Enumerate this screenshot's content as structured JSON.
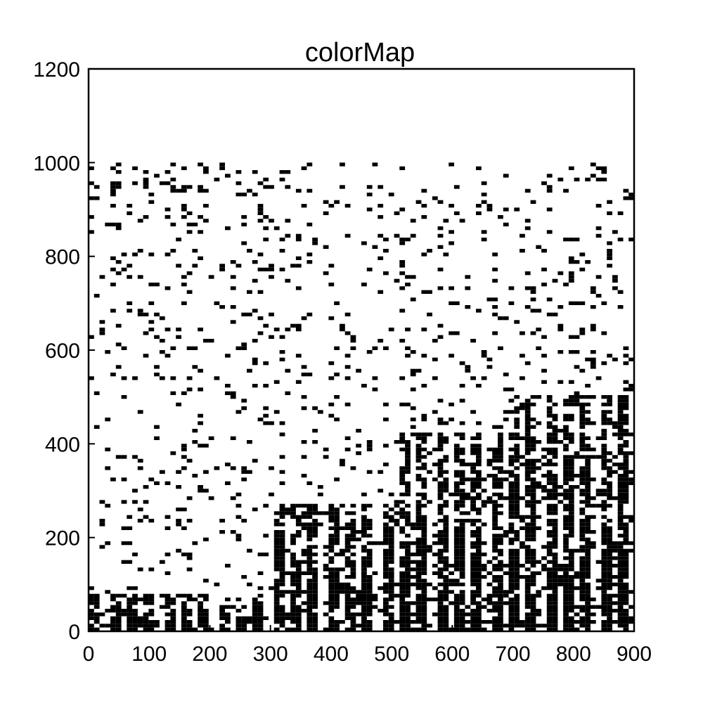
{
  "chart_data": {
    "type": "heatmap",
    "title": "colorMap",
    "xlabel": "",
    "ylabel": "",
    "xlim": [
      0,
      900
    ],
    "ylim": [
      0,
      1200
    ],
    "x_ticks": [
      0,
      100,
      200,
      300,
      400,
      500,
      600,
      700,
      800,
      900
    ],
    "y_ticks": [
      0,
      200,
      400,
      600,
      800,
      1000,
      1200
    ],
    "data_extent": {
      "x": [
        0,
        900
      ],
      "y": [
        0,
        1000
      ]
    },
    "colormap": [
      "#ffffff",
      "#000000"
    ],
    "grid": false,
    "legend": "none",
    "density_profile": [
      {
        "x_range": [
          0,
          300
        ],
        "dense_y_max": 80,
        "sparse_density": 0.08
      },
      {
        "x_range": [
          300,
          500
        ],
        "dense_y_max": 270,
        "sparse_density": 0.07
      },
      {
        "x_range": [
          500,
          700
        ],
        "dense_y_max": 420,
        "sparse_density": 0.08
      },
      {
        "x_range": [
          700,
          900
        ],
        "dense_y_max": 500,
        "sparse_density": 0.1
      }
    ]
  }
}
